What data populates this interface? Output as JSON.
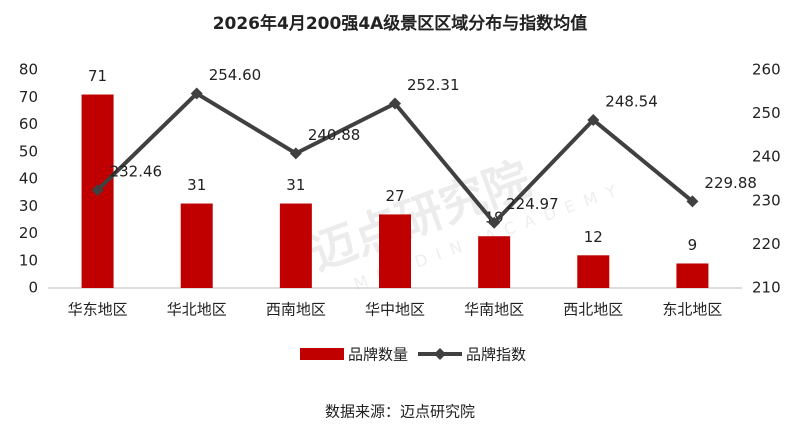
{
  "chart_data": {
    "type": "combo",
    "title": "2026年4月200强4A级景区区域分布与指数均值",
    "source": "数据来源：迈点研究院",
    "watermark": "迈点研究院",
    "watermark_en": "MEADIN ACADEMY",
    "categories": [
      "华东地区",
      "华北地区",
      "西南地区",
      "华中地区",
      "华南地区",
      "西北地区",
      "东北地区"
    ],
    "series": [
      {
        "name": "品牌数量",
        "type": "bar",
        "color": "#c00000",
        "values": [
          71,
          31,
          31,
          27,
          19,
          12,
          9
        ]
      },
      {
        "name": "品牌指数",
        "type": "line",
        "axis": "y2",
        "color": "#404040",
        "values": [
          232.46,
          254.6,
          240.88,
          252.31,
          224.97,
          248.54,
          229.88
        ],
        "value_labels": [
          "232.46",
          "254.60",
          "240.88",
          "252.31",
          "224.97",
          "248.54",
          "229.88"
        ]
      }
    ],
    "ylim": [
      0,
      80
    ],
    "yticks": [
      0,
      10,
      20,
      30,
      40,
      50,
      60,
      70,
      80
    ],
    "y2lim": [
      210,
      260
    ],
    "y2ticks": [
      210,
      220,
      230,
      240,
      250,
      260
    ],
    "legend": "bottom"
  }
}
